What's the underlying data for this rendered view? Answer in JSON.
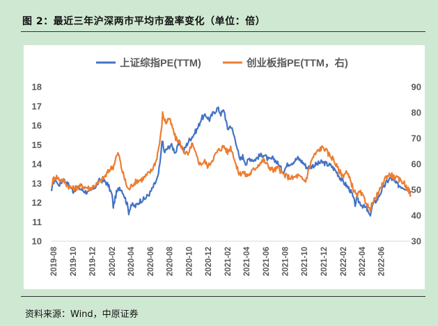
{
  "title": "图 2：最近三年沪深两市平均市盈率变化（单位：倍）",
  "source": "资料来源：Wind，中原证券",
  "chart_data": {
    "type": "line",
    "x_tick_labels": [
      "2019-08",
      "2019-10",
      "2019-12",
      "2020-02",
      "2020-04",
      "2020-06",
      "2020-08",
      "2020-10",
      "2020-12",
      "2021-02",
      "2021-04",
      "2021-06",
      "2021-08",
      "2021-10",
      "2021-12",
      "2022-02",
      "2022-04",
      "2022-06"
    ],
    "y_left": {
      "ticks": [
        10,
        11,
        12,
        13,
        14,
        15,
        16,
        17,
        18
      ],
      "lim": [
        10,
        18
      ]
    },
    "y_right": {
      "ticks": [
        30,
        40,
        50,
        60,
        70,
        80,
        90
      ],
      "lim": [
        30,
        90
      ]
    },
    "grid": false,
    "legend_position": "top",
    "x_range": [
      "2019-07-25",
      "2022-09-02"
    ],
    "series": [
      {
        "name": "上证综指PE(TTM)",
        "axis": "left",
        "color": "#4472c4",
        "points": [
          [
            "2019-07-25",
            12.6
          ],
          [
            "2019-08-01",
            13.1
          ],
          [
            "2019-08-08",
            13.2
          ],
          [
            "2019-08-15",
            12.9
          ],
          [
            "2019-08-22",
            13.0
          ],
          [
            "2019-09-01",
            13.2
          ],
          [
            "2019-09-10",
            13.0
          ],
          [
            "2019-09-20",
            12.9
          ],
          [
            "2019-10-01",
            12.6
          ],
          [
            "2019-10-15",
            12.8
          ],
          [
            "2019-10-25",
            12.7
          ],
          [
            "2019-11-05",
            12.6
          ],
          [
            "2019-11-20",
            12.5
          ],
          [
            "2019-12-01",
            12.7
          ],
          [
            "2019-12-15",
            12.9
          ],
          [
            "2019-12-25",
            13.2
          ],
          [
            "2020-01-10",
            13.1
          ],
          [
            "2020-01-20",
            12.9
          ],
          [
            "2020-02-01",
            12.4
          ],
          [
            "2020-02-05",
            11.8
          ],
          [
            "2020-02-15",
            12.5
          ],
          [
            "2020-02-25",
            12.8
          ],
          [
            "2020-03-05",
            12.6
          ],
          [
            "2020-03-12",
            12.3
          ],
          [
            "2020-03-20",
            11.9
          ],
          [
            "2020-03-25",
            11.5
          ],
          [
            "2020-04-01",
            11.9
          ],
          [
            "2020-04-15",
            11.8
          ],
          [
            "2020-04-30",
            12.1
          ],
          [
            "2020-05-15",
            12.2
          ],
          [
            "2020-05-31",
            12.5
          ],
          [
            "2020-06-10",
            12.8
          ],
          [
            "2020-06-25",
            13.3
          ],
          [
            "2020-07-03",
            14.2
          ],
          [
            "2020-07-08",
            15.3
          ],
          [
            "2020-07-15",
            14.6
          ],
          [
            "2020-07-25",
            14.8
          ],
          [
            "2020-08-05",
            15.0
          ],
          [
            "2020-08-20",
            14.6
          ],
          [
            "2020-09-01",
            15.1
          ],
          [
            "2020-09-15",
            14.7
          ],
          [
            "2020-09-30",
            15.2
          ],
          [
            "2020-10-15",
            15.5
          ],
          [
            "2020-10-30",
            15.9
          ],
          [
            "2020-11-10",
            16.4
          ],
          [
            "2020-11-25",
            16.5
          ],
          [
            "2020-12-05",
            16.3
          ],
          [
            "2020-12-15",
            16.6
          ],
          [
            "2020-12-31",
            16.9
          ],
          [
            "2021-01-10",
            16.6
          ],
          [
            "2021-01-20",
            16.8
          ],
          [
            "2021-01-31",
            15.8
          ],
          [
            "2021-02-10",
            16.0
          ],
          [
            "2021-02-20",
            15.5
          ],
          [
            "2021-03-01",
            15.0
          ],
          [
            "2021-03-10",
            14.2
          ],
          [
            "2021-03-20",
            14.4
          ],
          [
            "2021-03-31",
            14.0
          ],
          [
            "2021-04-10",
            14.3
          ],
          [
            "2021-04-25",
            14.2
          ],
          [
            "2021-05-10",
            14.4
          ],
          [
            "2021-05-25",
            14.5
          ],
          [
            "2021-06-10",
            14.2
          ],
          [
            "2021-06-25",
            14.3
          ],
          [
            "2021-07-10",
            14.0
          ],
          [
            "2021-07-25",
            13.6
          ],
          [
            "2021-08-10",
            14.0
          ],
          [
            "2021-08-25",
            14.1
          ],
          [
            "2021-09-10",
            14.3
          ],
          [
            "2021-09-25",
            14.1
          ],
          [
            "2021-10-10",
            13.8
          ],
          [
            "2021-10-25",
            13.9
          ],
          [
            "2021-11-10",
            14.0
          ],
          [
            "2021-11-25",
            14.1
          ],
          [
            "2021-12-10",
            14.0
          ],
          [
            "2021-12-25",
            13.9
          ],
          [
            "2022-01-10",
            13.6
          ],
          [
            "2022-01-25",
            13.2
          ],
          [
            "2022-02-10",
            12.9
          ],
          [
            "2022-02-20",
            12.7
          ],
          [
            "2022-03-01",
            12.4
          ],
          [
            "2022-03-10",
            11.9
          ],
          [
            "2022-03-15",
            12.2
          ],
          [
            "2022-03-25",
            12.0
          ],
          [
            "2022-04-05",
            11.8
          ],
          [
            "2022-04-15",
            11.7
          ],
          [
            "2022-04-25",
            11.3
          ],
          [
            "2022-05-05",
            11.9
          ],
          [
            "2022-05-20",
            12.2
          ],
          [
            "2022-06-01",
            12.6
          ],
          [
            "2022-06-15",
            13.0
          ],
          [
            "2022-06-30",
            13.3
          ],
          [
            "2022-07-10",
            13.1
          ],
          [
            "2022-07-25",
            12.9
          ],
          [
            "2022-08-10",
            12.8
          ],
          [
            "2022-08-25",
            12.7
          ],
          [
            "2022-09-02",
            12.6
          ]
        ]
      },
      {
        "name": "创业板指PE(TTM，右)",
        "axis": "right",
        "color": "#ed7d31",
        "points": [
          [
            "2019-07-25",
            52.0
          ],
          [
            "2019-08-01",
            54.5
          ],
          [
            "2019-08-10",
            55.0
          ],
          [
            "2019-08-20",
            54.0
          ],
          [
            "2019-09-01",
            53.5
          ],
          [
            "2019-09-15",
            51.5
          ],
          [
            "2019-10-01",
            50.5
          ],
          [
            "2019-10-15",
            51.0
          ],
          [
            "2019-10-30",
            51.5
          ],
          [
            "2019-11-10",
            51.0
          ],
          [
            "2019-11-25",
            50.5
          ],
          [
            "2019-12-05",
            51.5
          ],
          [
            "2019-12-20",
            52.5
          ],
          [
            "2020-01-05",
            54.5
          ],
          [
            "2020-01-15",
            56.0
          ],
          [
            "2020-01-25",
            58.0
          ],
          [
            "2020-02-05",
            59.0
          ],
          [
            "2020-02-15",
            63.0
          ],
          [
            "2020-02-22",
            64.0
          ],
          [
            "2020-03-01",
            59.0
          ],
          [
            "2020-03-10",
            55.0
          ],
          [
            "2020-03-20",
            51.0
          ],
          [
            "2020-03-25",
            50.0
          ],
          [
            "2020-04-05",
            52.0
          ],
          [
            "2020-04-20",
            53.5
          ],
          [
            "2020-05-05",
            54.0
          ],
          [
            "2020-05-20",
            55.5
          ],
          [
            "2020-06-05",
            57.5
          ],
          [
            "2020-06-20",
            61.5
          ],
          [
            "2020-06-30",
            68.0
          ],
          [
            "2020-07-05",
            72.0
          ],
          [
            "2020-07-10",
            79.5
          ],
          [
            "2020-07-20",
            76.0
          ],
          [
            "2020-07-30",
            78.0
          ],
          [
            "2020-08-10",
            74.0
          ],
          [
            "2020-08-20",
            70.0
          ],
          [
            "2020-09-01",
            68.5
          ],
          [
            "2020-09-15",
            65.0
          ],
          [
            "2020-09-30",
            63.5
          ],
          [
            "2020-10-10",
            68.0
          ],
          [
            "2020-10-25",
            63.0
          ],
          [
            "2020-11-05",
            60.0
          ],
          [
            "2020-11-20",
            61.0
          ],
          [
            "2020-12-01",
            59.0
          ],
          [
            "2020-12-15",
            62.0
          ],
          [
            "2020-12-31",
            65.0
          ],
          [
            "2021-01-10",
            66.0
          ],
          [
            "2021-01-20",
            67.0
          ],
          [
            "2021-01-31",
            64.5
          ],
          [
            "2021-02-10",
            66.5
          ],
          [
            "2021-02-20",
            63.0
          ],
          [
            "2021-03-01",
            58.5
          ],
          [
            "2021-03-10",
            56.0
          ],
          [
            "2021-03-20",
            57.0
          ],
          [
            "2021-03-31",
            55.5
          ],
          [
            "2021-04-10",
            56.0
          ],
          [
            "2021-04-25",
            58.0
          ],
          [
            "2021-05-10",
            60.0
          ],
          [
            "2021-05-25",
            61.5
          ],
          [
            "2021-06-10",
            59.0
          ],
          [
            "2021-06-25",
            57.5
          ],
          [
            "2021-07-10",
            58.5
          ],
          [
            "2021-07-25",
            56.0
          ],
          [
            "2021-08-10",
            55.0
          ],
          [
            "2021-08-25",
            54.5
          ],
          [
            "2021-09-10",
            55.5
          ],
          [
            "2021-09-25",
            54.0
          ],
          [
            "2021-10-05",
            53.5
          ],
          [
            "2021-10-15",
            58.0
          ],
          [
            "2021-10-25",
            62.0
          ],
          [
            "2021-11-05",
            64.0
          ],
          [
            "2021-11-20",
            66.0
          ],
          [
            "2021-12-01",
            66.5
          ],
          [
            "2021-12-15",
            64.0
          ],
          [
            "2021-12-31",
            62.0
          ],
          [
            "2022-01-15",
            58.0
          ],
          [
            "2022-01-30",
            55.5
          ],
          [
            "2022-02-10",
            57.0
          ],
          [
            "2022-02-25",
            53.0
          ],
          [
            "2022-03-05",
            50.0
          ],
          [
            "2022-03-15",
            47.5
          ],
          [
            "2022-03-25",
            49.0
          ],
          [
            "2022-04-05",
            47.0
          ],
          [
            "2022-04-15",
            45.0
          ],
          [
            "2022-04-25",
            42.0
          ],
          [
            "2022-05-05",
            45.0
          ],
          [
            "2022-05-20",
            48.0
          ],
          [
            "2022-06-01",
            51.0
          ],
          [
            "2022-06-10",
            54.0
          ],
          [
            "2022-06-20",
            55.5
          ],
          [
            "2022-06-30",
            56.0
          ],
          [
            "2022-07-10",
            55.0
          ],
          [
            "2022-07-25",
            54.0
          ],
          [
            "2022-08-10",
            53.0
          ],
          [
            "2022-08-25",
            50.0
          ],
          [
            "2022-09-02",
            48.0
          ]
        ]
      }
    ]
  }
}
